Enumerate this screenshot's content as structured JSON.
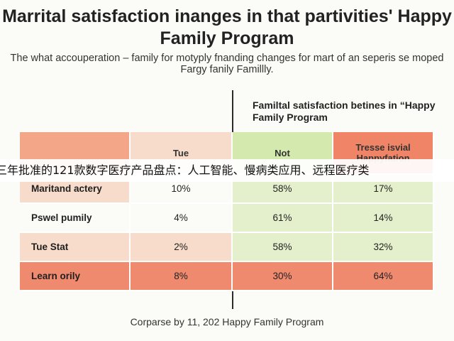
{
  "chart_data": {
    "type": "table",
    "title": "Marrital satisfaction inanges in that partivities' Happy Family Program",
    "subtitle": "The what accouperation – family for motyply fnanding changes for mart of an seperis se moped Fargy fanily Famillly.",
    "right_heading": "Familtal satisfaction betines in “Happy Family Program",
    "columns": [
      "Tue",
      "Not",
      "Tresse isvial Happyfation"
    ],
    "rows": [
      {
        "label": "Maritand actery",
        "values": [
          "10%",
          "58%",
          "17%"
        ]
      },
      {
        "label": "Pswel pumily",
        "values": [
          "4%",
          "61%",
          "14%"
        ]
      },
      {
        "label": "Tue Stat",
        "values": [
          "2%",
          "58%",
          "32%"
        ]
      },
      {
        "label": "Learn orily",
        "values": [
          "8%",
          "30%",
          "64%"
        ]
      }
    ],
    "footer": "Corparse by 11, 202 Happy Family Program"
  },
  "overlay_banner": "三年批准的121款数字医疗产品盘点：人工智能、慢病类应用、远程医疗类",
  "colors": {
    "header_salmon": "#f4a788",
    "header_green": "#d3e9ae",
    "row_peach": "#f8dccb",
    "row_green": "#e3f0cb",
    "row_highlight": "#f08a6f"
  }
}
